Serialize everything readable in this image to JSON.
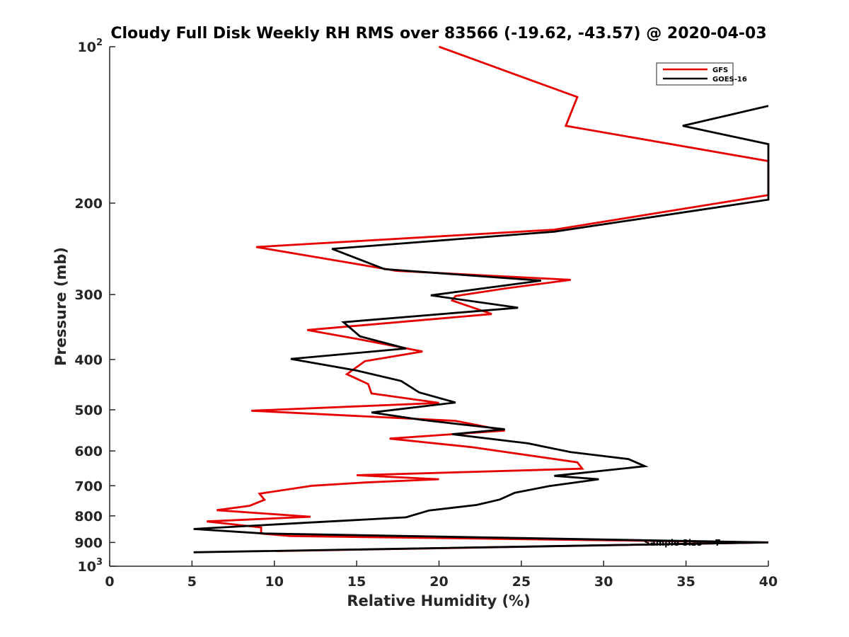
{
  "chart_data": {
    "type": "line",
    "title": "Cloudy Full Disk Weekly RH RMS over 83566 (-19.62, -43.57) @ 2020-04-03",
    "xlabel": "Relative Humidity (%)",
    "ylabel": "Pressure (mb)",
    "xlim": [
      0,
      40
    ],
    "ylim": [
      100,
      1000
    ],
    "y_scale": "log",
    "y_reversed": true,
    "x_ticks": [
      0,
      5,
      10,
      15,
      20,
      25,
      30,
      35,
      40
    ],
    "x_tick_labels": [
      "0",
      "5",
      "10",
      "15",
      "20",
      "25",
      "30",
      "35",
      "40"
    ],
    "y_ticks": [
      100,
      200,
      300,
      400,
      500,
      600,
      700,
      800,
      900,
      1000
    ],
    "y_tick_labels": [
      {
        "base": "10",
        "exp": "2"
      },
      {
        "base": "200",
        "exp": ""
      },
      {
        "base": "300",
        "exp": ""
      },
      {
        "base": "400",
        "exp": ""
      },
      {
        "base": "500",
        "exp": ""
      },
      {
        "base": "600",
        "exp": ""
      },
      {
        "base": "700",
        "exp": ""
      },
      {
        "base": "800",
        "exp": ""
      },
      {
        "base": "900",
        "exp": ""
      },
      {
        "base": "10",
        "exp": "3"
      }
    ],
    "grid": false,
    "legend_position": "top-right",
    "annotation": "Sample Size = 7",
    "series": [
      {
        "name": "GFS",
        "color": "#e60000",
        "points": [
          [
            20.0,
            100
          ],
          [
            28.4,
            125
          ],
          [
            27.7,
            142
          ],
          [
            40.0,
            166
          ],
          [
            40.0,
            193
          ],
          [
            27.0,
            225
          ],
          [
            8.9,
            243
          ],
          [
            15.0,
            262
          ],
          [
            17.4,
            270
          ],
          [
            28.0,
            281
          ],
          [
            24.0,
            292
          ],
          [
            21.0,
            302
          ],
          [
            20.8,
            308
          ],
          [
            23.2,
            327
          ],
          [
            12.0,
            351
          ],
          [
            15.0,
            365
          ],
          [
            19.0,
            386
          ],
          [
            15.5,
            403
          ],
          [
            14.4,
            427
          ],
          [
            15.7,
            446
          ],
          [
            15.9,
            465
          ],
          [
            20.0,
            485
          ],
          [
            8.6,
            502
          ],
          [
            21.0,
            525
          ],
          [
            24.0,
            548
          ],
          [
            17.0,
            568
          ],
          [
            22.0,
            590
          ],
          [
            28.4,
            631
          ],
          [
            28.7,
            649
          ],
          [
            15.0,
            668
          ],
          [
            20.0,
            680
          ],
          [
            15.5,
            690
          ],
          [
            12.3,
            700
          ],
          [
            9.1,
            725
          ],
          [
            9.4,
            745
          ],
          [
            8.5,
            765
          ],
          [
            6.5,
            780
          ],
          [
            12.2,
            803
          ],
          [
            5.9,
            820
          ],
          [
            9.2,
            842
          ],
          [
            9.2,
            865
          ],
          [
            11.0,
            875
          ],
          [
            40.0,
            900
          ],
          [
            10.1,
            935
          ]
        ]
      },
      {
        "name": "GOES-16",
        "color": "#000000",
        "points": [
          [
            40.0,
            130
          ],
          [
            34.8,
            142
          ],
          [
            40.0,
            154
          ],
          [
            40.0,
            197
          ],
          [
            27.0,
            227
          ],
          [
            13.5,
            245
          ],
          [
            16.7,
            268
          ],
          [
            26.2,
            282
          ],
          [
            19.5,
            301
          ],
          [
            24.8,
            318
          ],
          [
            14.2,
            339
          ],
          [
            15.2,
            361
          ],
          [
            18.0,
            381
          ],
          [
            11.0,
            399
          ],
          [
            15.0,
            420
          ],
          [
            17.7,
            440
          ],
          [
            18.8,
            463
          ],
          [
            21.0,
            484
          ],
          [
            15.9,
            506
          ],
          [
            19.0,
            523
          ],
          [
            24.0,
            545
          ],
          [
            20.8,
            557
          ],
          [
            25.4,
            580
          ],
          [
            28.0,
            603
          ],
          [
            31.5,
            622
          ],
          [
            32.5,
            642
          ],
          [
            27.0,
            670
          ],
          [
            29.7,
            680
          ],
          [
            26.7,
            701
          ],
          [
            24.6,
            722
          ],
          [
            23.7,
            744
          ],
          [
            22.3,
            762
          ],
          [
            19.4,
            781
          ],
          [
            18.0,
            805
          ],
          [
            11.8,
            825
          ],
          [
            5.1,
            848
          ],
          [
            9.4,
            865
          ],
          [
            40.0,
            900
          ],
          [
            5.1,
            940
          ]
        ]
      }
    ]
  }
}
